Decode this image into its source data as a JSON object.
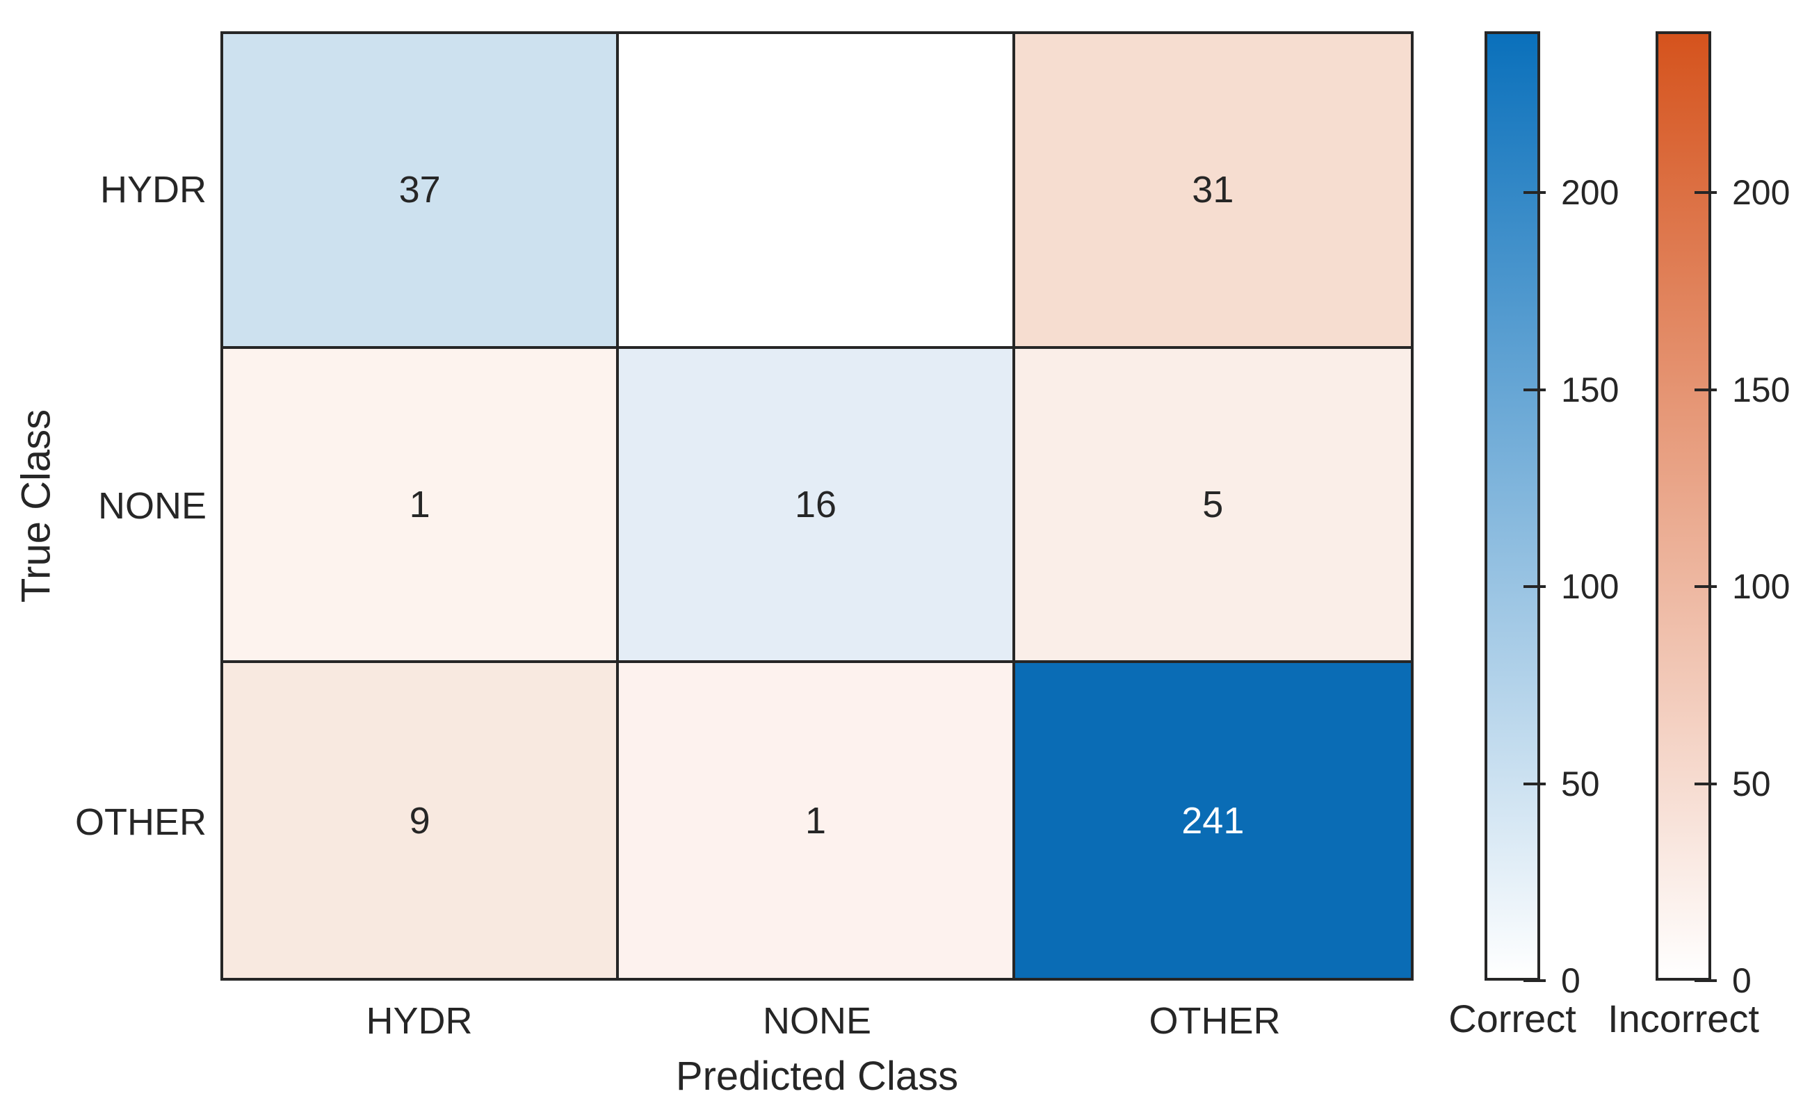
{
  "figure": {
    "background": "#ffffff",
    "axis_color": "#262626"
  },
  "chart_data": {
    "type": "heatmap",
    "subtype": "confusion-matrix",
    "title": "",
    "xlabel": "Predicted Class",
    "ylabel": "True Class",
    "x_categories": [
      "HYDR",
      "NONE",
      "OTHER"
    ],
    "y_categories": [
      "HYDR",
      "NONE",
      "OTHER"
    ],
    "values": [
      [
        37,
        0,
        31
      ],
      [
        1,
        16,
        5
      ],
      [
        9,
        1,
        241
      ]
    ],
    "cells": [
      [
        {
          "display": "37",
          "bg": "#cde1ef",
          "fg": "#262626"
        },
        {
          "display": "",
          "bg": "#ffffff",
          "fg": "#262626"
        },
        {
          "display": "31",
          "bg": "#f6ddd0",
          "fg": "#262626"
        }
      ],
      [
        {
          "display": "1",
          "bg": "#fdf3ee",
          "fg": "#262626"
        },
        {
          "display": "16",
          "bg": "#e4edf6",
          "fg": "#262626"
        },
        {
          "display": "5",
          "bg": "#faeee8",
          "fg": "#262626"
        }
      ],
      [
        {
          "display": "9",
          "bg": "#f8e9e0",
          "fg": "#262626"
        },
        {
          "display": "1",
          "bg": "#fdf2ee",
          "fg": "#262626"
        },
        {
          "display": "241",
          "bg": "#0a6cb5",
          "fg": "#ffffff"
        }
      ]
    ],
    "colorbars": [
      {
        "label": "Correct",
        "top_color": "#0a70bb",
        "bottom_color": "#ffffff",
        "scale_min": 0,
        "scale_max": 241,
        "ticks": [
          0,
          50,
          100,
          150,
          200
        ]
      },
      {
        "label": "Incorrect",
        "top_color": "#d5531d",
        "bottom_color": "#ffffff",
        "scale_min": 0,
        "scale_max": 241,
        "ticks": [
          0,
          50,
          100,
          150,
          200
        ]
      }
    ],
    "legend_position": "right",
    "grid": true
  }
}
